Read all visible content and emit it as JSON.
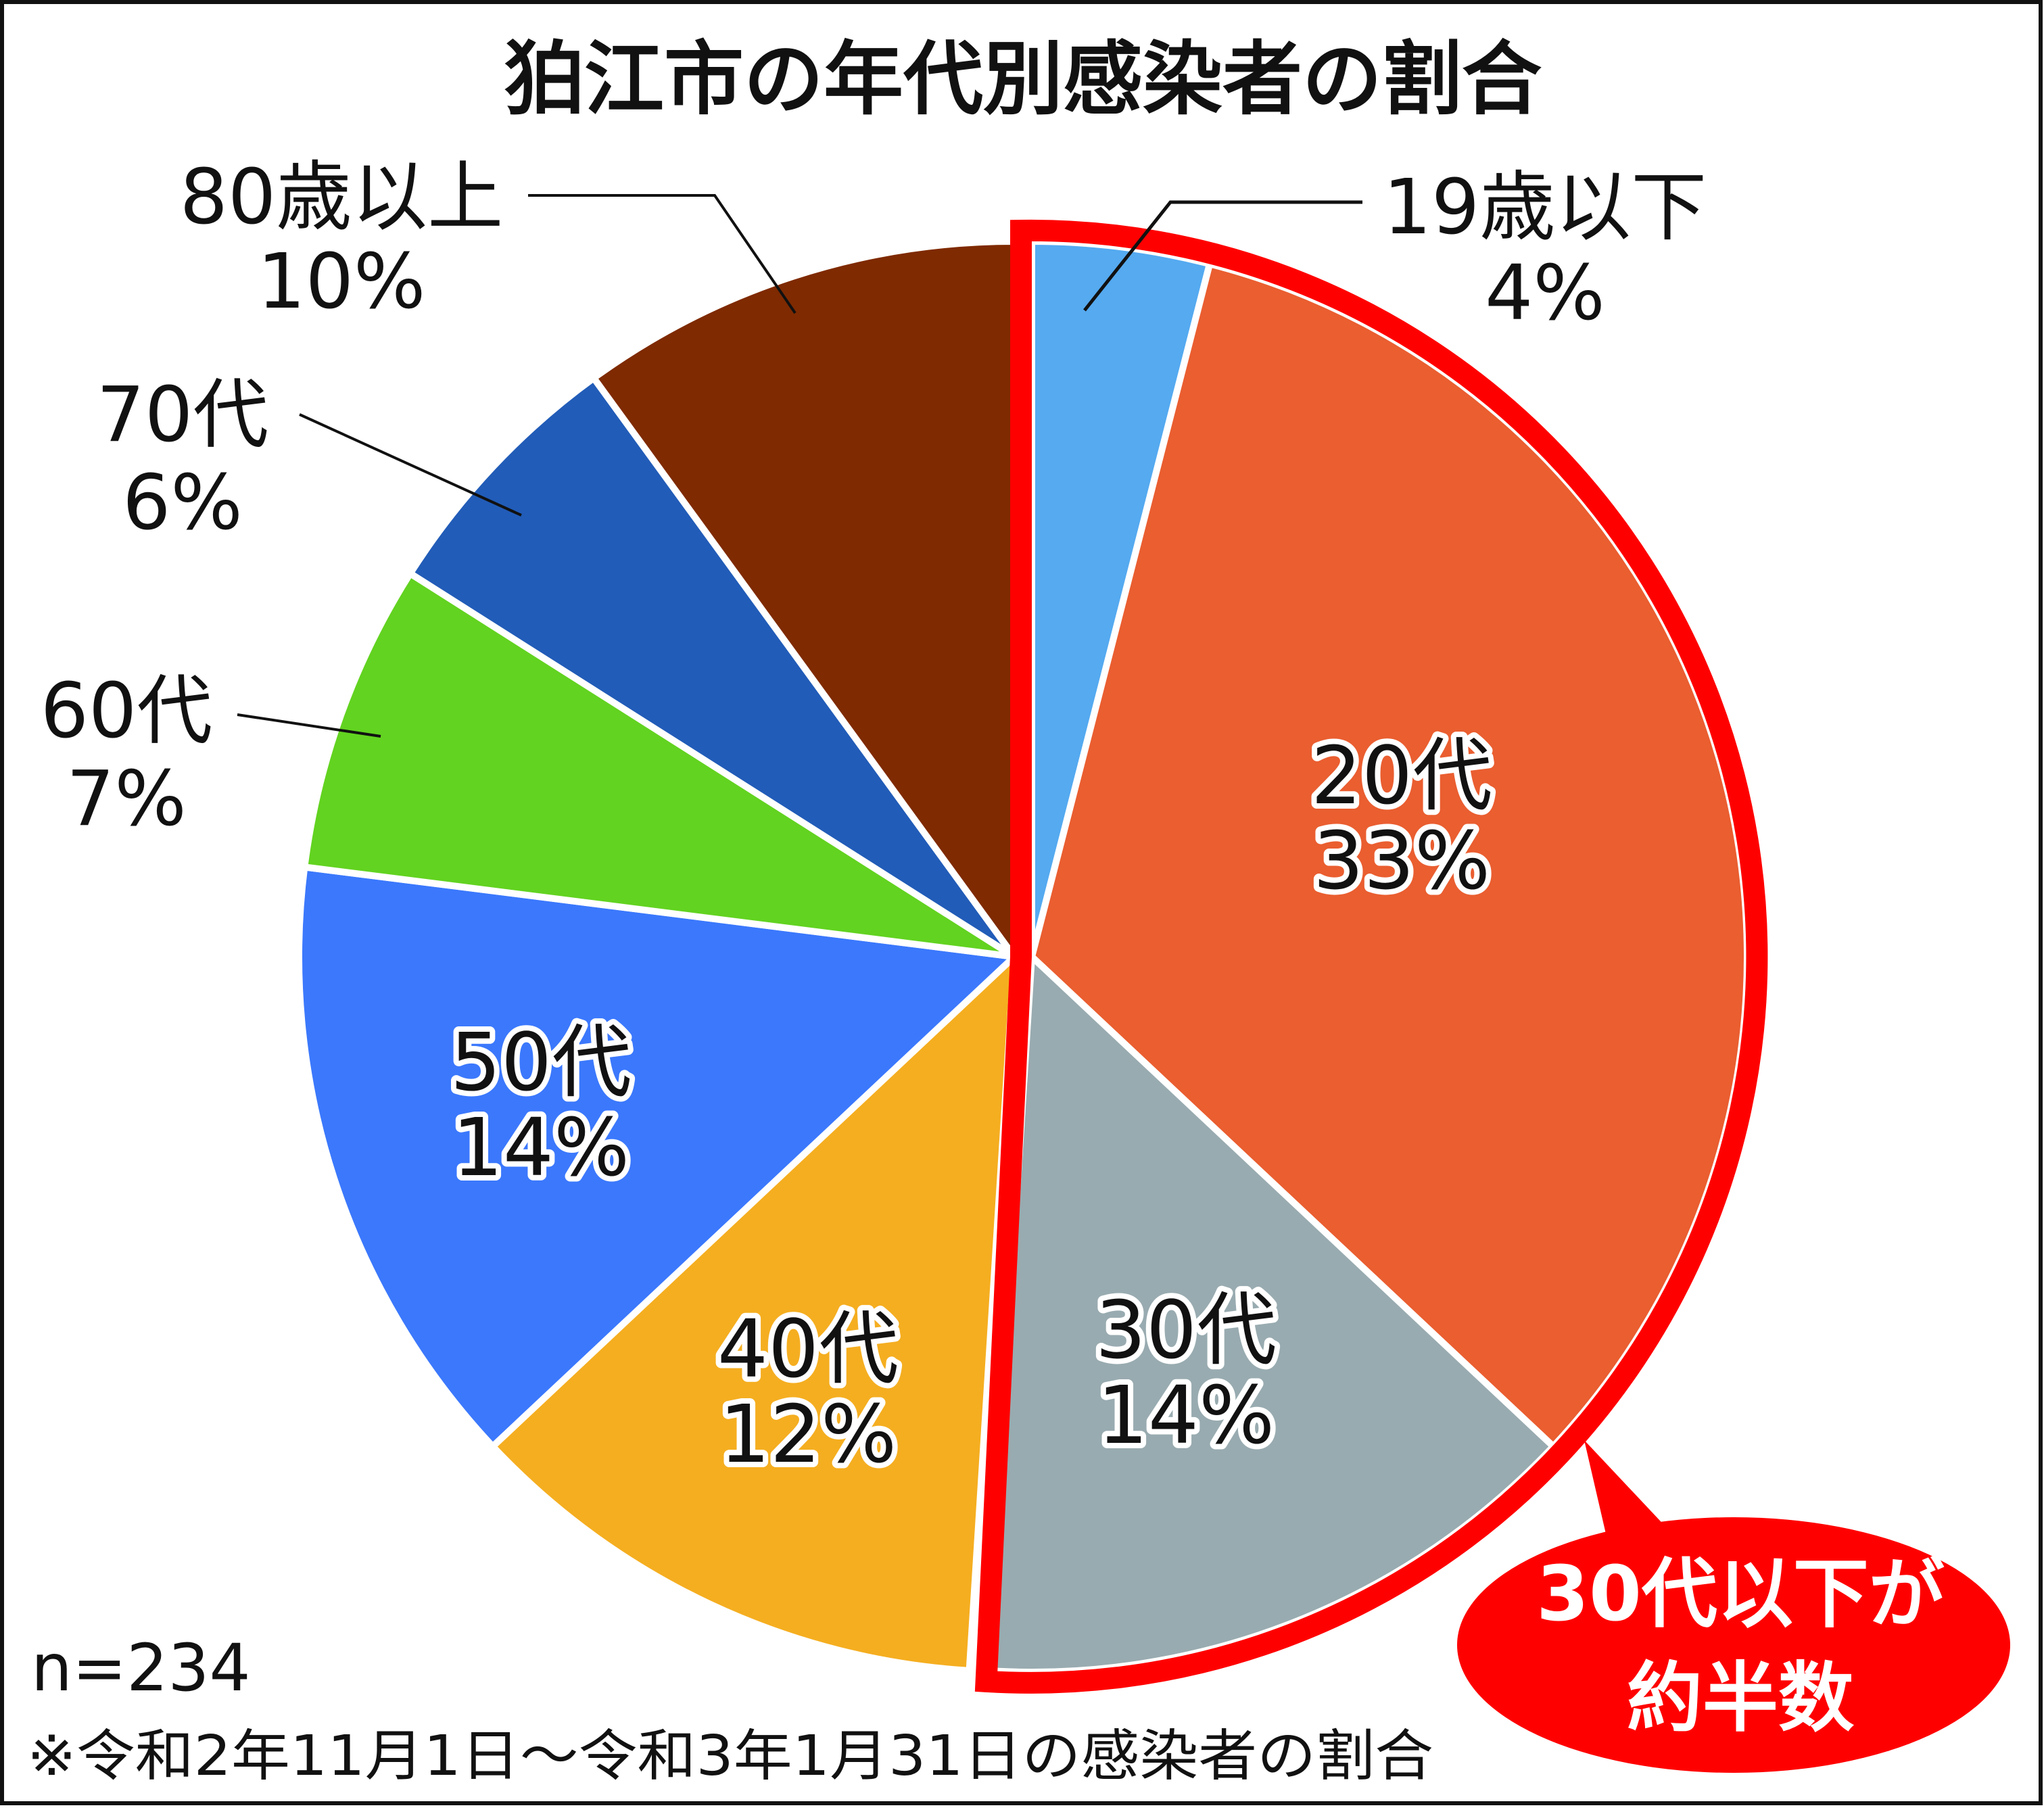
{
  "chart_data": {
    "type": "pie",
    "title": "狛江市の年代別感染者の割合",
    "categories": [
      "19歳以下",
      "20代",
      "30代",
      "40代",
      "50代",
      "60代",
      "70代",
      "80歳以上"
    ],
    "values": [
      4,
      33,
      14,
      12,
      14,
      7,
      6,
      10
    ],
    "unit": "%",
    "percent_labels": [
      "4%",
      "33%",
      "14%",
      "12%",
      "14%",
      "7%",
      "6%",
      "10%"
    ],
    "colors": [
      "#55aaf0",
      "#ea5e30",
      "#98abb0",
      "#f5ae20",
      "#3b78fc",
      "#62d320",
      "#215cb8",
      "#7f2a00"
    ],
    "highlighted": [
      "19歳以下",
      "20代",
      "30代"
    ],
    "highlight_color": "#ff0000",
    "callout": [
      "30代以下が",
      "約半数"
    ],
    "sample_size": "n=234",
    "footnote": "※令和2年11月1日～令和3年1月31日の感染者の割合"
  }
}
